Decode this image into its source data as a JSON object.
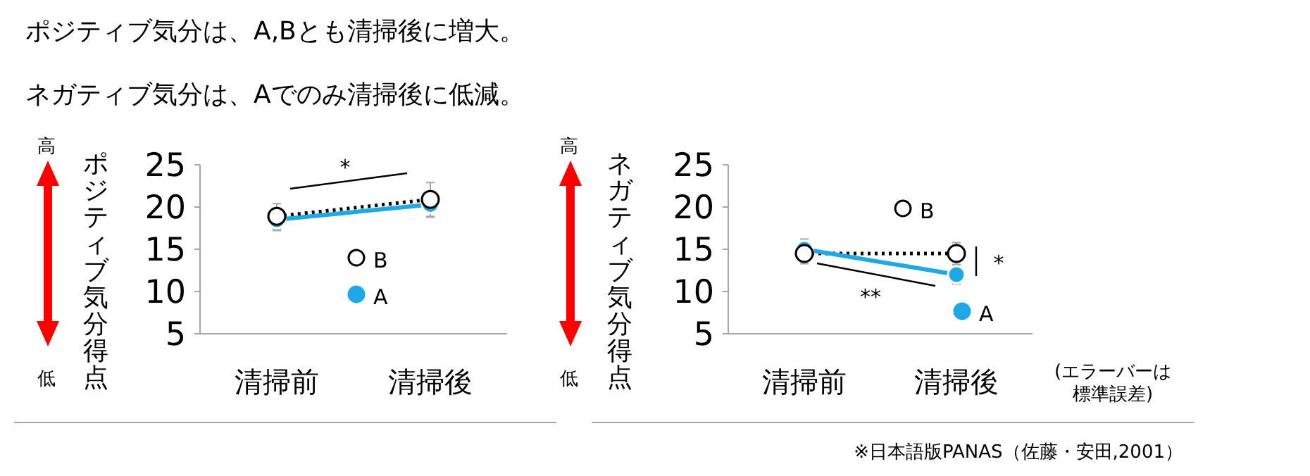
{
  "chart_data": [
    {
      "type": "line",
      "title": "ポジティブ気分は、A,Bとも清掃後に増大。",
      "subtitle": "ネガティブ気分は、Aでのみ清掃後に低減。",
      "ylabel": "ポジティブ気分得点",
      "categories": [
        "清掃前",
        "清掃後"
      ],
      "series": [
        {
          "name": "B",
          "color": "#000000",
          "line_style": "dotted",
          "values": [
            18.9,
            20.9
          ],
          "errors": [
            1.5,
            2
          ]
        },
        {
          "name": "A",
          "color": "#1ea8e6",
          "line_style": "solid",
          "values": [
            18.5,
            20.3
          ],
          "errors": [
            1.3,
            1.5
          ]
        }
      ],
      "ylim": [
        5,
        25
      ],
      "yticks": [
        5,
        10,
        15,
        20,
        25
      ],
      "marker": "circle",
      "legend": "bottom",
      "grid": false,
      "annotations": [
        "*",
        "高",
        "低"
      ]
    },
    {
      "type": "line",
      "ylabel": "ネガティブ気分得点",
      "categories": [
        "清掃前",
        "清掃後"
      ],
      "series": [
        {
          "name": "B",
          "color": "#000000",
          "line_style": "dotted",
          "values": [
            14.5,
            14.5
          ],
          "errors": [
            1.2,
            1.3
          ]
        },
        {
          "name": "A",
          "color": "#1ea8e6",
          "line_style": "solid",
          "values": [
            15.0,
            12.0
          ],
          "errors": [
            1.2,
            1.1
          ]
        }
      ],
      "ylim": [
        5,
        25
      ],
      "yticks": [
        5,
        10,
        15,
        20,
        25
      ],
      "marker": "circle",
      "legend": "right",
      "grid": false,
      "annotations": [
        "**",
        "*",
        "高",
        "低",
        "(エラーバーは標準誤差)",
        "※日本語版PANAS（佐藤・安田,2001）"
      ]
    }
  ]
}
